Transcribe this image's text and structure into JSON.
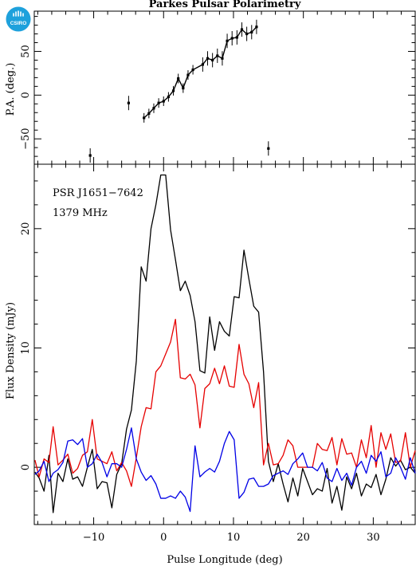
{
  "chart_data": [
    {
      "type": "scatter",
      "title": "Parkes Pulsar Polarimetry",
      "ylabel": "P.A. (deg.)",
      "xlim": [
        -18.5,
        36
      ],
      "ylim": [
        -79,
        96
      ],
      "y_ticks": [
        -50,
        0,
        50
      ],
      "x_ticks": [
        -10,
        0,
        10,
        20,
        30
      ],
      "series": [
        {
          "points": [
            [
              -10.5,
              -69
            ],
            [
              -5,
              -9
            ],
            [
              -2.8,
              -26
            ],
            [
              -2.1,
              -21
            ],
            [
              -1.4,
              -15
            ],
            [
              -0.7,
              -9
            ],
            [
              0,
              -7
            ],
            [
              0.7,
              -2
            ],
            [
              1.4,
              5
            ],
            [
              2.1,
              19
            ],
            [
              2.8,
              8
            ],
            [
              3.5,
              23
            ],
            [
              4.2,
              29
            ],
            [
              5.6,
              35
            ],
            [
              6.3,
              42
            ],
            [
              7,
              40
            ],
            [
              7.7,
              45
            ],
            [
              8.4,
              42
            ],
            [
              9.1,
              62
            ],
            [
              9.8,
              65
            ],
            [
              10.5,
              66
            ],
            [
              11.2,
              75
            ],
            [
              11.9,
              70
            ],
            [
              12.6,
              72
            ],
            [
              13.3,
              78
            ],
            [
              15,
              -61
            ]
          ],
          "line": [
            [
              -2.8,
              -26
            ],
            [
              -2.1,
              -21
            ],
            [
              -1.4,
              -15
            ],
            [
              -0.7,
              -9
            ],
            [
              0,
              -7
            ],
            [
              0.7,
              -2
            ],
            [
              1.4,
              5
            ],
            [
              2.1,
              19
            ],
            [
              2.8,
              8
            ],
            [
              3.5,
              23
            ],
            [
              4.2,
              29
            ],
            [
              5.6,
              35
            ],
            [
              6.3,
              42
            ],
            [
              7,
              40
            ],
            [
              7.7,
              45
            ],
            [
              8.4,
              42
            ],
            [
              9.1,
              62
            ],
            [
              9.8,
              65
            ],
            [
              10.5,
              66
            ],
            [
              11.2,
              75
            ],
            [
              11.9,
              70
            ],
            [
              12.6,
              72
            ],
            [
              13.3,
              78
            ]
          ]
        }
      ]
    },
    {
      "type": "line",
      "xlabel": "Pulse Longitude (deg)",
      "ylabel": "Flux Density (mJy)",
      "xlim": [
        -18.5,
        36
      ],
      "ylim": [
        -4.8,
        25.4
      ],
      "y_ticks": [
        0,
        10,
        20
      ],
      "x_ticks": [
        -10,
        0,
        10,
        20,
        30
      ],
      "annotations": [
        "PSR J1651−7642",
        "1379 MHz"
      ],
      "series": [
        {
          "color": "#000000",
          "x": [
            -18.4,
            -17.8,
            -17.1,
            -16.4,
            -15.8,
            -15.1,
            -14.4,
            -13.7,
            -13.0,
            -12.3,
            -11.6,
            -10.9,
            -10.2,
            -9.5,
            -8.8,
            -8.1,
            -7.4,
            -6.7,
            -6.0,
            -5.3,
            -4.6,
            -3.9,
            -3.2,
            -2.5,
            -1.8,
            -1.1,
            -0.4,
            0.3,
            1.0,
            1.7,
            2.4,
            3.1,
            3.8,
            4.5,
            5.2,
            5.9,
            6.6,
            7.3,
            8.0,
            8.7,
            9.4,
            10.1,
            10.8,
            11.5,
            12.2,
            12.9,
            13.6,
            14.3,
            15.0,
            15.7,
            16.4,
            17.1,
            17.8,
            18.5,
            19.2,
            19.9,
            20.6,
            21.3,
            22.0,
            22.7,
            23.4,
            24.1,
            24.8,
            25.5,
            26.2,
            26.9,
            27.6,
            28.3,
            29.0,
            29.7,
            30.4,
            31.1,
            31.8,
            32.5,
            33.2,
            33.9,
            34.6,
            35.3,
            36.0
          ],
          "values": [
            -0.4,
            -0.9,
            -2.0,
            1.0,
            -3.8,
            -0.5,
            -1.2,
            0.7,
            -1.0,
            -0.8,
            -1.6,
            0.0,
            1.5,
            -1.8,
            -1.2,
            -1.3,
            -3.4,
            -0.6,
            0.3,
            3.2,
            4.8,
            8.9,
            16.8,
            15.6,
            20.0,
            22.0,
            24.5,
            24.5,
            19.9,
            17.4,
            14.8,
            15.6,
            14.4,
            12.2,
            8.1,
            7.9,
            12.6,
            9.8,
            12.2,
            11.4,
            11.0,
            14.3,
            14.2,
            18.2,
            15.8,
            13.5,
            13.0,
            8.0,
            0.5,
            -1.2,
            0.3,
            -1.4,
            -2.9,
            -0.9,
            -2.4,
            -0.1,
            -1.2,
            -2.3,
            -1.8,
            -2.0,
            -0.1,
            -3.0,
            -1.6,
            -3.6,
            -0.8,
            -1.8,
            -0.5,
            -2.4,
            -1.4,
            -1.7,
            -0.6,
            -2.3,
            -1.0,
            0.8,
            0.1,
            0.6,
            -0.2,
            0.0,
            -0.5
          ]
        },
        {
          "color": "#e60000",
          "x": [
            -18.4,
            -17.8,
            -17.1,
            -16.4,
            -15.8,
            -15.1,
            -14.4,
            -13.7,
            -13.0,
            -12.3,
            -11.6,
            -10.9,
            -10.2,
            -9.5,
            -8.8,
            -8.1,
            -7.4,
            -6.7,
            -6.0,
            -5.3,
            -4.6,
            -3.9,
            -3.2,
            -2.5,
            -1.8,
            -1.1,
            -0.4,
            0.3,
            1.0,
            1.7,
            2.4,
            3.1,
            3.8,
            4.5,
            5.2,
            5.9,
            6.6,
            7.3,
            8.0,
            8.7,
            9.4,
            10.1,
            10.8,
            11.5,
            12.2,
            12.9,
            13.6,
            14.3,
            15.0,
            15.7,
            16.4,
            17.1,
            17.8,
            18.5,
            19.2,
            19.9,
            20.6,
            21.3,
            22.0,
            22.7,
            23.4,
            24.1,
            24.8,
            25.5,
            26.2,
            26.9,
            27.6,
            28.3,
            29.0,
            29.7,
            30.4,
            31.1,
            31.8,
            32.5,
            33.2,
            33.9,
            34.6,
            35.3,
            36.0
          ],
          "values": [
            0.6,
            -0.8,
            0.7,
            0.4,
            3.4,
            0.2,
            0.6,
            1.1,
            -0.5,
            -0.1,
            1.0,
            1.3,
            4.0,
            0.7,
            0.5,
            0.3,
            1.3,
            -0.3,
            0.4,
            -0.3,
            -1.6,
            0.8,
            3.4,
            5.0,
            4.9,
            8.0,
            8.5,
            9.5,
            10.5,
            12.4,
            7.5,
            7.4,
            7.8,
            6.9,
            3.3,
            6.6,
            7.0,
            8.3,
            7.0,
            8.5,
            6.8,
            6.7,
            10.3,
            7.8,
            7.0,
            5.0,
            7.1,
            0.2,
            2.0,
            0.2,
            0.3,
            1.0,
            2.3,
            1.8,
            0.0,
            0.0,
            0.0,
            0.0,
            2.0,
            1.5,
            1.4,
            2.5,
            0.2,
            2.4,
            1.1,
            1.2,
            0.0,
            2.3,
            0.8,
            3.5,
            0.0,
            2.9,
            1.5,
            2.8,
            0.4,
            0.5,
            2.9,
            0.0,
            1.4
          ]
        },
        {
          "color": "#0000e6",
          "x": [
            -18.4,
            -17.8,
            -17.1,
            -16.4,
            -15.8,
            -15.1,
            -14.4,
            -13.7,
            -13.0,
            -12.3,
            -11.6,
            -10.9,
            -10.2,
            -9.5,
            -8.8,
            -8.1,
            -7.4,
            -6.7,
            -6.0,
            -5.3,
            -4.6,
            -3.9,
            -3.2,
            -2.5,
            -1.8,
            -1.1,
            -0.4,
            0.3,
            1.0,
            1.7,
            2.4,
            3.1,
            3.8,
            4.5,
            5.2,
            5.9,
            6.6,
            7.3,
            8.0,
            8.7,
            9.4,
            10.1,
            10.8,
            11.5,
            12.2,
            12.9,
            13.6,
            14.3,
            15.0,
            15.7,
            16.4,
            17.1,
            17.8,
            18.5,
            19.2,
            19.9,
            20.6,
            21.3,
            22.0,
            22.7,
            23.4,
            24.1,
            24.8,
            25.5,
            26.2,
            26.9,
            27.6,
            28.3,
            29.0,
            29.7,
            30.4,
            31.1,
            31.8,
            32.5,
            33.2,
            33.9,
            34.6,
            35.3,
            36.0
          ],
          "values": [
            -0.6,
            -0.3,
            0.5,
            -1.2,
            -0.5,
            -0.2,
            0.4,
            2.2,
            2.3,
            1.9,
            2.4,
            0.0,
            0.3,
            1.1,
            0.4,
            -0.8,
            0.3,
            0.3,
            0.0,
            1.5,
            3.3,
            0.7,
            -0.4,
            -1.1,
            -0.7,
            -1.4,
            -2.6,
            -2.6,
            -2.4,
            -2.6,
            -2.0,
            -2.5,
            -3.7,
            1.8,
            -0.8,
            -0.4,
            -0.1,
            -0.4,
            0.5,
            2.0,
            3.0,
            2.3,
            -2.6,
            -2.1,
            -1.0,
            -0.9,
            -1.6,
            -1.6,
            -1.4,
            -0.7,
            -0.5,
            -0.3,
            -0.6,
            0.3,
            0.7,
            1.2,
            0.0,
            0.0,
            -0.3,
            0.4,
            -0.9,
            -1.2,
            -0.1,
            -1.1,
            -0.5,
            -1.5,
            0.0,
            0.5,
            -0.5,
            1.0,
            0.5,
            1.3,
            -0.8,
            -0.5,
            0.8,
            0.0,
            -1.0,
            0.8,
            -0.5
          ]
        }
      ]
    }
  ],
  "logo": {
    "text": "CSIRO",
    "color": "#1ea1dc"
  }
}
